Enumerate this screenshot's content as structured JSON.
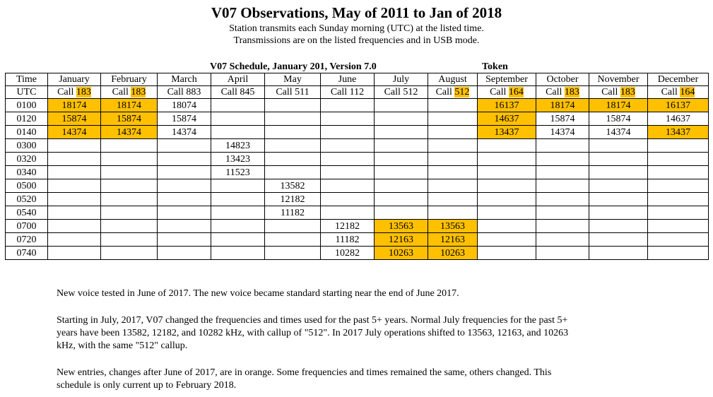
{
  "title": "V07 Observations, May of 2011 to Jan of 2018",
  "subtitle_lines": [
    "Station transmits each Sunday morning (UTC) at the listed time.",
    "Transmissions are on the listed frequencies and in USB mode."
  ],
  "schedule_title": "V07 Schedule, January 201, Version 7.0",
  "token_label": "Token",
  "highlight_color": "#ffc000",
  "table": {
    "time_header": [
      "Time",
      "UTC"
    ],
    "months": [
      {
        "name": "January",
        "call_prefix": "Call",
        "call": "183",
        "call_highlight": true
      },
      {
        "name": "February",
        "call_prefix": "Call",
        "call": "183",
        "call_highlight": true
      },
      {
        "name": "March",
        "call_prefix": "Call",
        "call": "883",
        "call_highlight": false
      },
      {
        "name": "April",
        "call_prefix": "Call",
        "call": "845",
        "call_highlight": false
      },
      {
        "name": "May",
        "call_prefix": "Call",
        "call": "511",
        "call_highlight": false
      },
      {
        "name": "June",
        "call_prefix": "Call",
        "call": "112",
        "call_highlight": false
      },
      {
        "name": "July",
        "call_prefix": "Call",
        "call": "512",
        "call_highlight": false
      },
      {
        "name": "August",
        "call_prefix": "Call",
        "call": "512",
        "call_highlight": true
      },
      {
        "name": "September",
        "call_prefix": "Call",
        "call": "164",
        "call_highlight": true
      },
      {
        "name": "October",
        "call_prefix": "Call",
        "call": "183",
        "call_highlight": true
      },
      {
        "name": "November",
        "call_prefix": "Call",
        "call": "183",
        "call_highlight": true
      },
      {
        "name": "December",
        "call_prefix": "Call",
        "call": "164",
        "call_highlight": true
      }
    ],
    "rows": [
      {
        "time": "0100",
        "cells": [
          {
            "v": "18174",
            "h": true
          },
          {
            "v": "18174",
            "h": true
          },
          {
            "v": "18074",
            "h": false
          },
          {
            "v": "",
            "h": false
          },
          {
            "v": "",
            "h": false
          },
          {
            "v": "",
            "h": false
          },
          {
            "v": "",
            "h": false
          },
          {
            "v": "",
            "h": false
          },
          {
            "v": "16137",
            "h": true
          },
          {
            "v": "18174",
            "h": true
          },
          {
            "v": "18174",
            "h": true
          },
          {
            "v": "16137",
            "h": true
          }
        ]
      },
      {
        "time": "0120",
        "cells": [
          {
            "v": "15874",
            "h": true
          },
          {
            "v": "15874",
            "h": true
          },
          {
            "v": "15874",
            "h": false
          },
          {
            "v": "",
            "h": false
          },
          {
            "v": "",
            "h": false
          },
          {
            "v": "",
            "h": false
          },
          {
            "v": "",
            "h": false
          },
          {
            "v": "",
            "h": false
          },
          {
            "v": "14637",
            "h": true
          },
          {
            "v": "15874",
            "h": false
          },
          {
            "v": "15874",
            "h": false
          },
          {
            "v": "14637",
            "h": false
          }
        ]
      },
      {
        "time": "0140",
        "cells": [
          {
            "v": "14374",
            "h": true
          },
          {
            "v": "14374",
            "h": true
          },
          {
            "v": "14374",
            "h": false
          },
          {
            "v": "",
            "h": false
          },
          {
            "v": "",
            "h": false
          },
          {
            "v": "",
            "h": false
          },
          {
            "v": "",
            "h": false
          },
          {
            "v": "",
            "h": false
          },
          {
            "v": "13437",
            "h": true
          },
          {
            "v": "14374",
            "h": false
          },
          {
            "v": "14374",
            "h": false
          },
          {
            "v": "13437",
            "h": true
          }
        ]
      },
      {
        "time": "0300",
        "cells": [
          {
            "v": "",
            "h": false
          },
          {
            "v": "",
            "h": false
          },
          {
            "v": "",
            "h": false
          },
          {
            "v": "14823",
            "h": false
          },
          {
            "v": "",
            "h": false
          },
          {
            "v": "",
            "h": false
          },
          {
            "v": "",
            "h": false
          },
          {
            "v": "",
            "h": false
          },
          {
            "v": "",
            "h": false
          },
          {
            "v": "",
            "h": false
          },
          {
            "v": "",
            "h": false
          },
          {
            "v": "",
            "h": false
          }
        ]
      },
      {
        "time": "0320",
        "cells": [
          {
            "v": "",
            "h": false
          },
          {
            "v": "",
            "h": false
          },
          {
            "v": "",
            "h": false
          },
          {
            "v": "13423",
            "h": false
          },
          {
            "v": "",
            "h": false
          },
          {
            "v": "",
            "h": false
          },
          {
            "v": "",
            "h": false
          },
          {
            "v": "",
            "h": false
          },
          {
            "v": "",
            "h": false
          },
          {
            "v": "",
            "h": false
          },
          {
            "v": "",
            "h": false
          },
          {
            "v": "",
            "h": false
          }
        ]
      },
      {
        "time": "0340",
        "cells": [
          {
            "v": "",
            "h": false
          },
          {
            "v": "",
            "h": false
          },
          {
            "v": "",
            "h": false
          },
          {
            "v": "11523",
            "h": false
          },
          {
            "v": "",
            "h": false
          },
          {
            "v": "",
            "h": false
          },
          {
            "v": "",
            "h": false
          },
          {
            "v": "",
            "h": false
          },
          {
            "v": "",
            "h": false
          },
          {
            "v": "",
            "h": false
          },
          {
            "v": "",
            "h": false
          },
          {
            "v": "",
            "h": false
          }
        ]
      },
      {
        "time": "0500",
        "cells": [
          {
            "v": "",
            "h": false
          },
          {
            "v": "",
            "h": false
          },
          {
            "v": "",
            "h": false
          },
          {
            "v": "",
            "h": false
          },
          {
            "v": "13582",
            "h": false
          },
          {
            "v": "",
            "h": false
          },
          {
            "v": "",
            "h": false
          },
          {
            "v": "",
            "h": false
          },
          {
            "v": "",
            "h": false
          },
          {
            "v": "",
            "h": false
          },
          {
            "v": "",
            "h": false
          },
          {
            "v": "",
            "h": false
          }
        ]
      },
      {
        "time": "0520",
        "cells": [
          {
            "v": "",
            "h": false
          },
          {
            "v": "",
            "h": false
          },
          {
            "v": "",
            "h": false
          },
          {
            "v": "",
            "h": false
          },
          {
            "v": "12182",
            "h": false
          },
          {
            "v": "",
            "h": false
          },
          {
            "v": "",
            "h": false
          },
          {
            "v": "",
            "h": false
          },
          {
            "v": "",
            "h": false
          },
          {
            "v": "",
            "h": false
          },
          {
            "v": "",
            "h": false
          },
          {
            "v": "",
            "h": false
          }
        ]
      },
      {
        "time": "0540",
        "cells": [
          {
            "v": "",
            "h": false
          },
          {
            "v": "",
            "h": false
          },
          {
            "v": "",
            "h": false
          },
          {
            "v": "",
            "h": false
          },
          {
            "v": "11182",
            "h": false
          },
          {
            "v": "",
            "h": false
          },
          {
            "v": "",
            "h": false
          },
          {
            "v": "",
            "h": false
          },
          {
            "v": "",
            "h": false
          },
          {
            "v": "",
            "h": false
          },
          {
            "v": "",
            "h": false
          },
          {
            "v": "",
            "h": false
          }
        ]
      },
      {
        "time": "0700",
        "cells": [
          {
            "v": "",
            "h": false
          },
          {
            "v": "",
            "h": false
          },
          {
            "v": "",
            "h": false
          },
          {
            "v": "",
            "h": false
          },
          {
            "v": "",
            "h": false
          },
          {
            "v": "12182",
            "h": false
          },
          {
            "v": "13563",
            "h": true
          },
          {
            "v": "13563",
            "h": true
          },
          {
            "v": "",
            "h": false
          },
          {
            "v": "",
            "h": false
          },
          {
            "v": "",
            "h": false
          },
          {
            "v": "",
            "h": false
          }
        ]
      },
      {
        "time": "0720",
        "cells": [
          {
            "v": "",
            "h": false
          },
          {
            "v": "",
            "h": false
          },
          {
            "v": "",
            "h": false
          },
          {
            "v": "",
            "h": false
          },
          {
            "v": "",
            "h": false
          },
          {
            "v": "11182",
            "h": false
          },
          {
            "v": "12163",
            "h": true
          },
          {
            "v": "12163",
            "h": true
          },
          {
            "v": "",
            "h": false
          },
          {
            "v": "",
            "h": false
          },
          {
            "v": "",
            "h": false
          },
          {
            "v": "",
            "h": false
          }
        ]
      },
      {
        "time": "0740",
        "cells": [
          {
            "v": "",
            "h": false
          },
          {
            "v": "",
            "h": false
          },
          {
            "v": "",
            "h": false
          },
          {
            "v": "",
            "h": false
          },
          {
            "v": "",
            "h": false
          },
          {
            "v": "10282",
            "h": false
          },
          {
            "v": "10263",
            "h": true
          },
          {
            "v": "10263",
            "h": true
          },
          {
            "v": "",
            "h": false
          },
          {
            "v": "",
            "h": false
          },
          {
            "v": "",
            "h": false
          },
          {
            "v": "",
            "h": false
          }
        ]
      }
    ]
  },
  "paragraphs": [
    [
      "New voice tested in June of 2017.  The new voice became standard starting near the end of June 2017."
    ],
    [
      "Starting in July, 2017, V07 changed the frequencies and times used for the past 5+ years.  Normal July frequencies for the past 5+",
      "years have been 13582, 12182, and 10282 kHz, with callup of \"512\".  In 2017 July operations shifted to 13563, 12163, and 10263",
      "kHz,  with the same \"512\" callup."
    ],
    [
      "New entries, changes after June of 2017, are in orange.  Some frequencies and times remained the same, others changed.  This",
      "schedule is only current up to February 2018."
    ]
  ]
}
